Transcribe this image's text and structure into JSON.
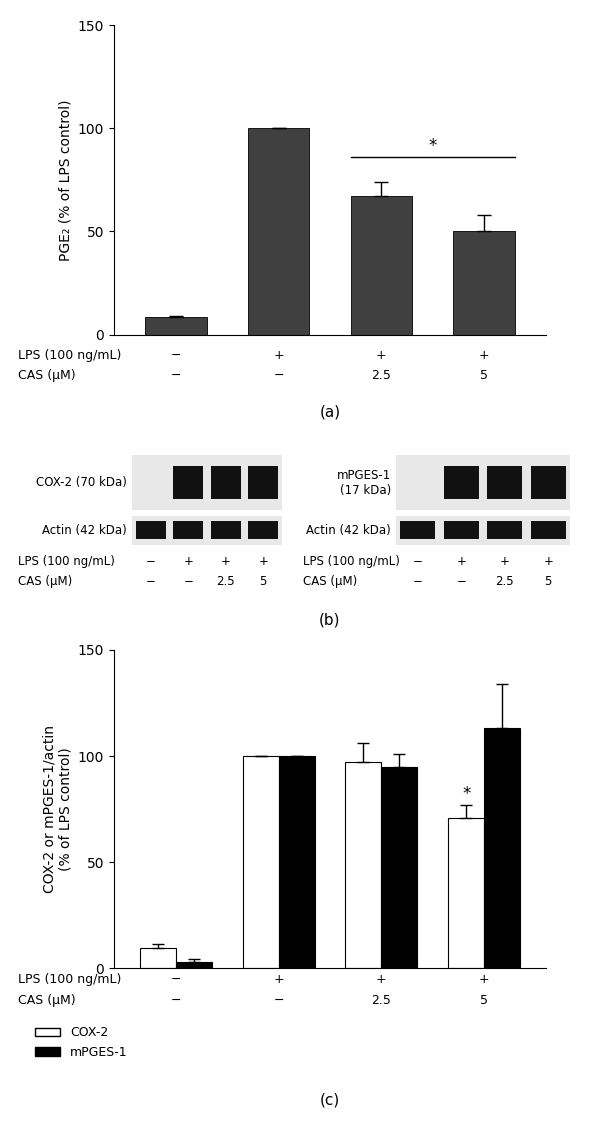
{
  "chart_data": [
    {
      "type": "bar",
      "panel_label": "(a)",
      "categories": [
        null,
        null,
        null,
        null
      ],
      "y_label": "PGE₂ (% of LPS control)",
      "values": [
        8.5,
        100,
        67,
        50
      ],
      "errors": [
        0.5,
        0,
        7,
        8
      ],
      "color": "#404040",
      "ylim": [
        0,
        150
      ],
      "yticks": [
        0,
        50,
        100,
        150
      ],
      "tick_labels": "y",
      "condition_rows": [
        {
          "label": "LPS (100 ng/mL)",
          "values": [
            "−",
            "+",
            "+",
            "+"
          ]
        },
        {
          "label": "CAS (μM)",
          "values": [
            "−",
            "−",
            "2.5",
            "5"
          ]
        }
      ],
      "significance": [
        {
          "categories": [
            2,
            3
          ],
          "label": "*"
        }
      ]
    },
    {
      "type": "bar",
      "panel_label": "(c)",
      "categories": [
        null,
        null,
        null,
        null
      ],
      "y_label": "COX-2 or mPGES-1/actin\n(% of LPS control)",
      "series": [
        {
          "name": "COX-2",
          "color": "#ffffff",
          "values": [
            9.5,
            100,
            97,
            71
          ],
          "errors": [
            2,
            0,
            9,
            6
          ]
        },
        {
          "name": "mPGES-1",
          "color": "#000000",
          "values": [
            3,
            100,
            95,
            113
          ],
          "errors": [
            1.5,
            0,
            6,
            21
          ]
        }
      ],
      "ylim": [
        0,
        150
      ],
      "yticks": [
        0,
        50,
        100,
        150
      ],
      "tick_labels": "y",
      "legend": "upper left",
      "condition_rows": [
        {
          "label": "LPS (100 ng/mL)",
          "values": [
            "−",
            "+",
            "+",
            "+"
          ]
        },
        {
          "label": "CAS (μM)",
          "values": [
            "−",
            "−",
            "2.5",
            "5"
          ]
        }
      ],
      "significance": [
        {
          "series": "COX-2",
          "category": 3,
          "label": "*"
        }
      ]
    }
  ],
  "western_blot": {
    "panel_label": "(b)",
    "blots": [
      {
        "rows": [
          {
            "label": "COX-2 (70 kDa)",
            "bands": [
              false,
              true,
              true,
              true
            ]
          },
          {
            "label": "Actin (42 kDa)",
            "bands": [
              true,
              true,
              true,
              true
            ]
          }
        ],
        "condition_rows": [
          {
            "label": "LPS (100 ng/mL)",
            "values": [
              "−",
              "+",
              "+",
              "+"
            ]
          },
          {
            "label": "CAS (μM)",
            "values": [
              "−",
              "−",
              "2.5",
              "5"
            ]
          }
        ]
      },
      {
        "rows": [
          {
            "label": "mPGES-1\n(17 kDa)",
            "bands": [
              false,
              true,
              true,
              true
            ]
          },
          {
            "label": "Actin (42 kDa)",
            "bands": [
              true,
              true,
              true,
              true
            ]
          }
        ],
        "condition_rows": [
          {
            "label": "LPS (100 ng/mL)",
            "values": [
              "−",
              "+",
              "+",
              "+"
            ]
          },
          {
            "label": "CAS (μM)",
            "values": [
              "−",
              "−",
              "2.5",
              "5"
            ]
          }
        ]
      }
    ]
  }
}
